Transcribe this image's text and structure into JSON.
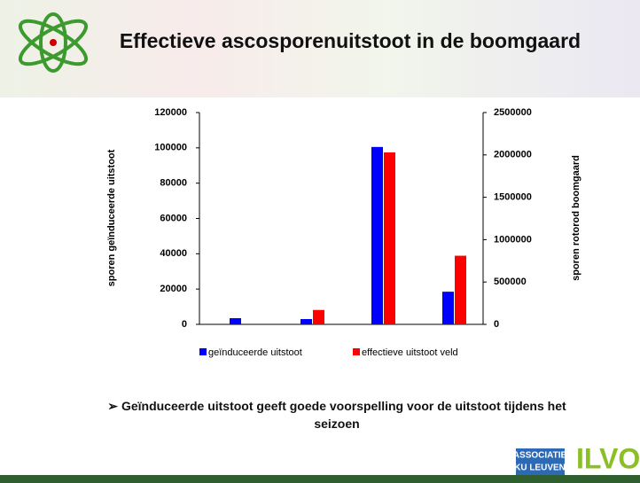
{
  "chart_data": {
    "type": "bar",
    "title": "Effectieve ascosporenuitstoot in de boomgaard",
    "categories": [
      null,
      null,
      null,
      null
    ],
    "series": [
      {
        "name": "geïnduceerde uitstoot",
        "color": "#0000ff",
        "values": [
          3500,
          3000,
          100500,
          18500
        ]
      },
      {
        "name": "effectieve uitstoot veld",
        "color": "#ff0000",
        "axis": "y2",
        "values": [
          0,
          170000,
          2030000,
          810000
        ]
      }
    ],
    "ylabel": "sporen geïnduceerde uitstoot",
    "y2label": "sporen rotorod boomgaard",
    "ylim": [
      0,
      120000
    ],
    "yticks": [
      0,
      20000,
      40000,
      60000,
      80000,
      100000,
      120000
    ],
    "y2lim": [
      0,
      2500000
    ],
    "y2ticks": [
      0,
      500000,
      1000000,
      1500000,
      2000000,
      2500000
    ],
    "legend": "bottom"
  },
  "bullet": "Geïnduceerde uitstoot geeft goede voorspelling voor de uitstoot tijdens het seizoen",
  "logos": [
    "ASSOCIATIE",
    "KU LEUVEN",
    "ILVO"
  ]
}
